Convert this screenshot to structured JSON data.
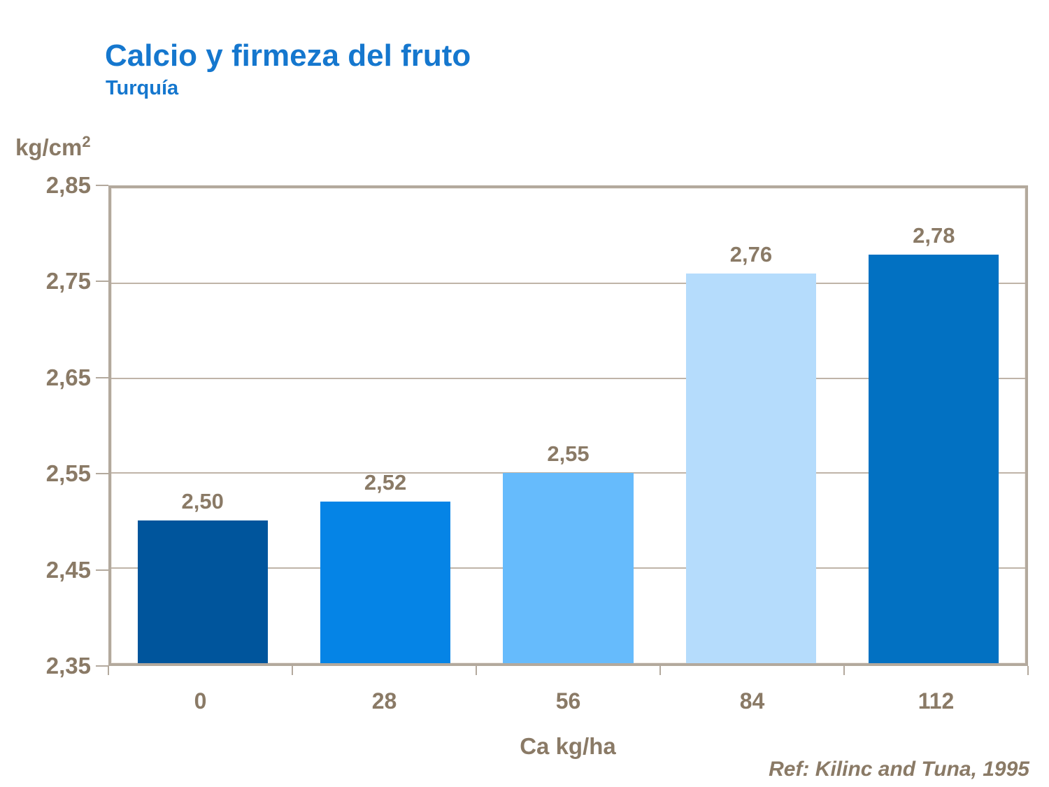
{
  "header": {
    "title": "Calcio y firmeza del fruto",
    "subtitle": "Turquía"
  },
  "chart_data": {
    "type": "bar",
    "categories": [
      "0",
      "28",
      "56",
      "84",
      "112"
    ],
    "values": [
      2.5,
      2.52,
      2.55,
      2.76,
      2.78
    ],
    "value_labels": [
      "2,50",
      "2,52",
      "2,55",
      "2,76",
      "2,78"
    ],
    "bar_colors": [
      "#00559c",
      "#0584e6",
      "#66bbfc",
      "#b5dcfc",
      "#0271c2"
    ],
    "title": "Calcio y firmeza del fruto",
    "subtitle": "Turquía",
    "xlabel": "Ca kg/ha",
    "ylabel": {
      "base": "kg/cm",
      "sup": "2"
    },
    "ylim": [
      2.35,
      2.85
    ],
    "ytick_step": 0.1,
    "yticks": [
      "2,85",
      "2,75",
      "2,65",
      "2,55",
      "2,45",
      "2,35"
    ],
    "grid": true,
    "legend_position": "none"
  },
  "footer": {
    "reference": "Ref: Kilinc and Tuna, 1995"
  },
  "colors": {
    "title_blue": "#1577ce",
    "axis_text": "#8a7a66",
    "gridline": "#bfb4a8",
    "plot_border": "#b3a99d",
    "background": "#ffffff"
  }
}
